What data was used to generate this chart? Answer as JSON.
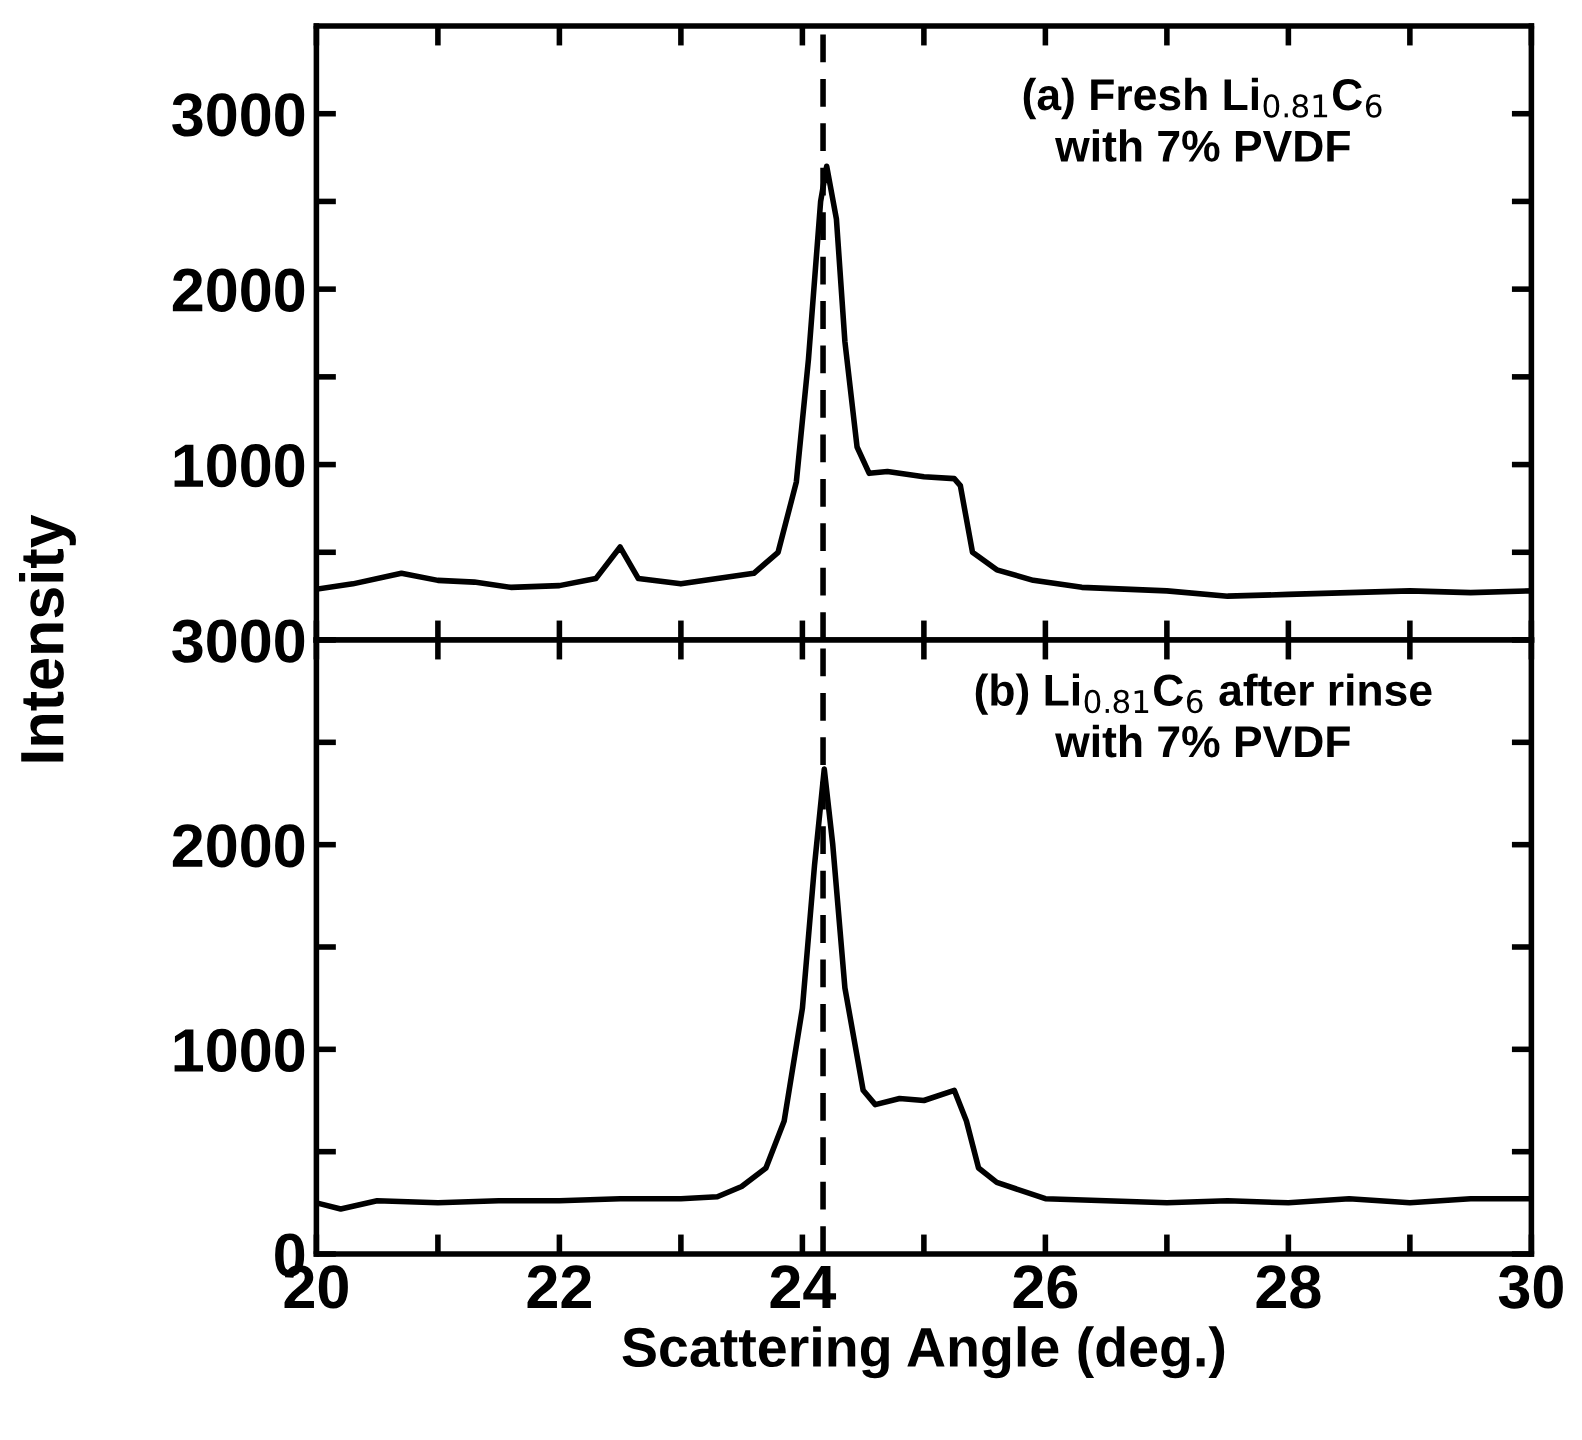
{
  "chart_data": [
    {
      "type": "line",
      "ylabel": "Intensity",
      "annotations": [
        "(a) Fresh Li$_{0.81}$C$_{6}$\nwith 7% PVDF"
      ],
      "series": [
        {
          "color": "#000000",
          "x": [
            20.0,
            20.3,
            20.7,
            21.0,
            21.3,
            21.6,
            22.0,
            22.3,
            22.5,
            22.65,
            23.0,
            23.4,
            23.6,
            23.8,
            23.95,
            24.05,
            24.15,
            24.2,
            24.28,
            24.35,
            24.45,
            24.55,
            24.7,
            25.0,
            25.25,
            25.3,
            25.4,
            25.6,
            25.9,
            26.3,
            27.0,
            27.5,
            28.0,
            28.5,
            29.0,
            29.5,
            30.0
          ],
          "values": [
            290,
            320,
            380,
            340,
            330,
            300,
            310,
            350,
            530,
            350,
            320,
            360,
            380,
            500,
            900,
            1600,
            2500,
            2700,
            2400,
            1700,
            1100,
            950,
            960,
            930,
            920,
            880,
            500,
            400,
            340,
            300,
            280,
            250,
            260,
            270,
            280,
            270,
            280
          ]
        }
      ],
      "xlim": [
        20,
        30
      ],
      "xticks": [
        20,
        21,
        22,
        23,
        24,
        25,
        26,
        27,
        28,
        29,
        30
      ],
      "ylim": [
        0,
        3500
      ],
      "yticks": [
        {
          "value": 0,
          "label": null
        },
        {
          "value": 500,
          "label": null
        },
        1000,
        {
          "value": 1500,
          "label": null
        },
        2000,
        {
          "value": 2500,
          "label": null
        },
        3000
      ],
      "tick_labels": "y",
      "grid": false,
      "legend": false,
      "ref_lines": [
        {
          "axis": "x",
          "value": 24.17,
          "line_style": "dashed",
          "color": "#000000"
        }
      ]
    },
    {
      "type": "line",
      "xlabel": "Scattering Angle (deg.)",
      "annotations": [
        "(b) Li$_{0.81}$C$_{6}$ after rinse\nwith 7% PVDF"
      ],
      "series": [
        {
          "color": "#000000",
          "x": [
            20.0,
            20.2,
            20.5,
            21.0,
            21.5,
            22.0,
            22.5,
            23.0,
            23.3,
            23.5,
            23.7,
            23.85,
            24.0,
            24.1,
            24.18,
            24.25,
            24.35,
            24.5,
            24.6,
            24.8,
            25.0,
            25.25,
            25.35,
            25.45,
            25.6,
            26.0,
            26.5,
            27.0,
            27.5,
            28.0,
            28.5,
            29.0,
            29.5,
            30.0
          ],
          "values": [
            250,
            220,
            260,
            250,
            260,
            260,
            270,
            270,
            280,
            330,
            420,
            650,
            1200,
            1900,
            2370,
            2000,
            1300,
            800,
            730,
            760,
            750,
            800,
            650,
            420,
            350,
            270,
            260,
            250,
            260,
            250,
            270,
            250,
            270,
            270
          ]
        }
      ],
      "xlim": [
        20,
        30
      ],
      "xticks": [
        20,
        {
          "value": 21,
          "label": null
        },
        22,
        {
          "value": 23,
          "label": null
        },
        24,
        {
          "value": 25,
          "label": null
        },
        26,
        {
          "value": 27,
          "label": null
        },
        28,
        {
          "value": 29,
          "label": null
        },
        30
      ],
      "ylim": [
        0,
        3000
      ],
      "yticks": [
        0,
        {
          "value": 500,
          "label": null
        },
        1000,
        {
          "value": 1500,
          "label": null
        },
        2000,
        {
          "value": 2500,
          "label": null
        },
        3000
      ],
      "grid": false,
      "legend": false,
      "ref_lines": [
        {
          "axis": "x",
          "value": 24.17,
          "line_style": "dashed",
          "color": "#000000"
        }
      ]
    }
  ]
}
